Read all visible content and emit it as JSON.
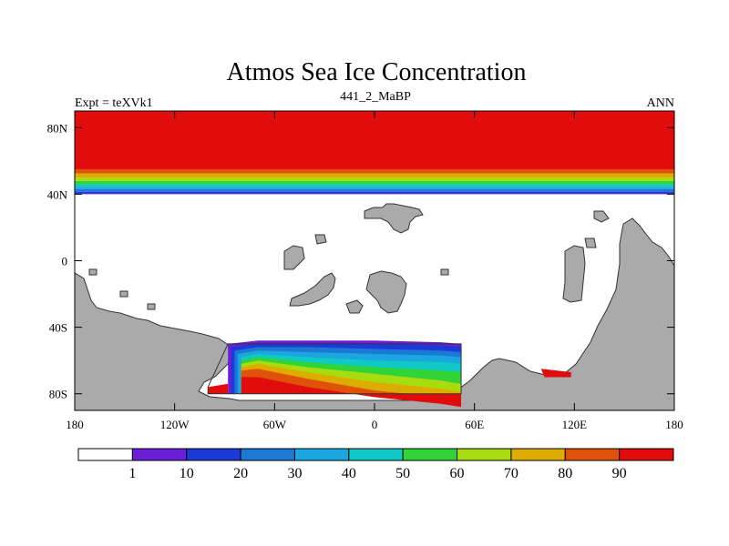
{
  "chart_data": {
    "type": "heatmap",
    "title": "Atmos Sea Ice Concentration",
    "subtitle_center": "441_2_MaBP",
    "subtitle_left": "Expt = teXVk1",
    "subtitle_right": "ANN",
    "x_ticks": [
      "180",
      "120W",
      "60W",
      "0",
      "60E",
      "120E",
      "180"
    ],
    "x_tick_values": [
      -180,
      -120,
      -60,
      0,
      60,
      120,
      180
    ],
    "y_ticks": [
      "80N",
      "40N",
      "0",
      "40S",
      "80S"
    ],
    "y_tick_values": [
      80,
      40,
      0,
      -40,
      -80
    ],
    "xlim": [
      -180,
      180
    ],
    "ylim": [
      -90,
      90
    ],
    "colorbar": {
      "levels": [
        "1",
        "10",
        "20",
        "30",
        "40",
        "50",
        "60",
        "70",
        "80",
        "90"
      ],
      "colors": [
        "#ffffff",
        "#6a1ed6",
        "#1c3ad8",
        "#1b78d4",
        "#1aa7e0",
        "#10c9c4",
        "#30d436",
        "#a8dc10",
        "#dcad00",
        "#e0520a",
        "#e10c0c"
      ]
    },
    "land_color": "#aaaaaa",
    "north_band": {
      "lat_edge": 40,
      "note": "concentration rises from 1 at ~41N to >90 by ~58N, full cover to 90N",
      "level_lats": [
        40.5,
        41.5,
        43,
        44.5,
        46,
        48,
        50,
        52.5,
        55,
        58
      ]
    },
    "southern_ice": {
      "lon_range": [
        -88,
        52
      ],
      "bands": [
        {
          "level": "1",
          "profile": [
            [
              -88,
              -50
            ],
            [
              -70,
              -48
            ],
            [
              -40,
              -48
            ],
            [
              0,
              -48
            ],
            [
              40,
              -49
            ],
            [
              52,
              -50
            ]
          ]
        },
        {
          "level": "10",
          "profile": [
            [
              -86,
              -52
            ],
            [
              -70,
              -50
            ],
            [
              -40,
              -50
            ],
            [
              0,
              -50
            ],
            [
              40,
              -51
            ],
            [
              52,
              -52
            ]
          ]
        },
        {
          "level": "20",
          "profile": [
            [
              -84,
              -54
            ],
            [
              -70,
              -52
            ],
            [
              -40,
              -52
            ],
            [
              0,
              -53
            ],
            [
              40,
              -54
            ],
            [
              52,
              -55
            ]
          ]
        },
        {
          "level": "30",
          "profile": [
            [
              -82,
              -56
            ],
            [
              -70,
              -54
            ],
            [
              -40,
              -55
            ],
            [
              0,
              -56
            ],
            [
              40,
              -57
            ],
            [
              52,
              -58
            ]
          ]
        },
        {
          "level": "40",
          "profile": [
            [
              -80,
              -58
            ],
            [
              -70,
              -56
            ],
            [
              -40,
              -58
            ],
            [
              0,
              -60
            ],
            [
              40,
              -61
            ],
            [
              52,
              -62
            ]
          ]
        },
        {
          "level": "50",
          "profile": [
            [
              -80,
              -60
            ],
            [
              -70,
              -58
            ],
            [
              -40,
              -61
            ],
            [
              0,
              -64
            ],
            [
              40,
              -66
            ],
            [
              52,
              -67
            ]
          ]
        },
        {
          "level": "60",
          "profile": [
            [
              -80,
              -62
            ],
            [
              -70,
              -60
            ],
            [
              -40,
              -64
            ],
            [
              0,
              -68
            ],
            [
              40,
              -72
            ],
            [
              52,
              -74
            ]
          ]
        },
        {
          "level": "70",
          "profile": [
            [
              -80,
              -64
            ],
            [
              -70,
              -62
            ],
            [
              -40,
              -67
            ],
            [
              0,
              -73
            ],
            [
              40,
              -77
            ],
            [
              52,
              -79
            ]
          ]
        },
        {
          "level": "80",
          "profile": [
            [
              -80,
              -66
            ],
            [
              -70,
              -65
            ],
            [
              -40,
              -71
            ],
            [
              0,
              -78
            ],
            [
              40,
              -82
            ],
            [
              52,
              -84
            ]
          ]
        },
        {
          "level": "90",
          "profile": [
            [
              -80,
              -70
            ],
            [
              -70,
              -70
            ],
            [
              -40,
              -76
            ],
            [
              0,
              -82
            ],
            [
              40,
              -86
            ],
            [
              52,
              -88
            ]
          ]
        }
      ]
    }
  }
}
